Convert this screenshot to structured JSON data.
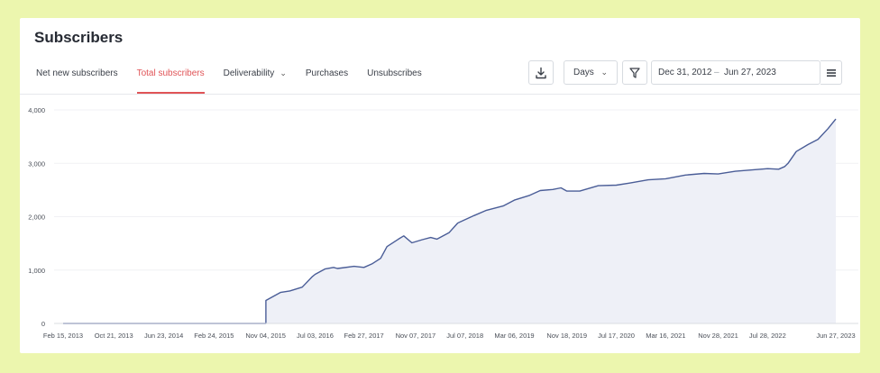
{
  "header": {
    "title": "Subscribers"
  },
  "tabs": [
    {
      "label": "Net new subscribers",
      "active": false
    },
    {
      "label": "Total subscribers",
      "active": true
    },
    {
      "label": "Deliverability",
      "active": false,
      "dropdown": true
    },
    {
      "label": "Purchases",
      "active": false
    },
    {
      "label": "Unsubscribes",
      "active": false
    }
  ],
  "toolbar": {
    "download_icon": "download-icon",
    "interval_value": "Days",
    "filter_icon": "filter-icon",
    "date_start": "Dec 31, 2012",
    "date_separator": "–",
    "date_end": "Jun 27, 2023",
    "menu_icon": "hamburger-menu-icon"
  },
  "colors": {
    "accent": "#e05457",
    "line": "#4a5d97",
    "area": "#eef0f7",
    "background": "#ecf6ae"
  },
  "chart_data": {
    "type": "area",
    "title": "",
    "xlabel": "",
    "ylabel": "",
    "ylim": [
      0,
      4000
    ],
    "yticks": [
      0,
      1000,
      2000,
      3000,
      4000
    ],
    "ytick_labels": [
      "0",
      "1,000",
      "2,000",
      "3,000",
      "4,000"
    ],
    "xlim": [
      "2012-12-31",
      "2023-06-27"
    ],
    "xtick_labels": [
      "Feb 15, 2013",
      "Oct 21, 2013",
      "Jun 23, 2014",
      "Feb 24, 2015",
      "Nov 04, 2015",
      "Jul 03, 2016",
      "Feb 27, 2017",
      "Nov 07, 2017",
      "Jul 07, 2018",
      "Mar 06, 2019",
      "Nov 18, 2019",
      "Jul 17, 2020",
      "Mar 16, 2021",
      "Nov 28, 2021",
      "Jul 28, 2022",
      "Jun 27, 2023"
    ],
    "xticks": [
      "2013-02-15",
      "2013-10-21",
      "2014-06-23",
      "2015-02-24",
      "2015-11-04",
      "2016-07-03",
      "2017-02-27",
      "2017-11-07",
      "2018-07-07",
      "2019-03-06",
      "2019-11-18",
      "2020-07-17",
      "2021-03-16",
      "2021-11-28",
      "2022-07-28",
      "2023-06-27"
    ],
    "grid": true,
    "legend": false,
    "series": [
      {
        "x": [
          "2013-02-15",
          "2015-11-04",
          "2015-11-05",
          "2016-01-15",
          "2016-03-01",
          "2016-05-01",
          "2016-06-20",
          "2016-07-03",
          "2016-08-20",
          "2016-10-01",
          "2016-10-20",
          "2017-01-10",
          "2017-02-27",
          "2017-04-10",
          "2017-05-20",
          "2017-06-20",
          "2017-08-15",
          "2017-09-10",
          "2017-10-20",
          "2017-12-10",
          "2018-01-20",
          "2018-02-20",
          "2018-04-20",
          "2018-06-01",
          "2018-08-20",
          "2018-10-20",
          "2019-01-10",
          "2019-03-06",
          "2019-05-20",
          "2019-07-10",
          "2019-09-10",
          "2019-10-20",
          "2019-11-18",
          "2020-01-20",
          "2020-04-20",
          "2020-07-17",
          "2020-09-20",
          "2020-12-20",
          "2021-03-16",
          "2021-06-20",
          "2021-09-20",
          "2021-11-28",
          "2022-02-20",
          "2022-05-20",
          "2022-07-28",
          "2022-09-20",
          "2022-10-20",
          "2022-11-05",
          "2022-12-15",
          "2023-02-10",
          "2023-04-01",
          "2023-05-20",
          "2023-06-27"
        ],
        "values": [
          0,
          0,
          430,
          580,
          610,
          680,
          880,
          920,
          1020,
          1050,
          1030,
          1070,
          1050,
          1120,
          1220,
          1440,
          1580,
          1640,
          1510,
          1570,
          1610,
          1580,
          1700,
          1880,
          2020,
          2120,
          2200,
          2310,
          2400,
          2490,
          2510,
          2540,
          2480,
          2480,
          2580,
          2590,
          2630,
          2690,
          2710,
          2780,
          2810,
          2800,
          2850,
          2880,
          2900,
          2890,
          2940,
          3000,
          3220,
          3350,
          3450,
          3650,
          3830
        ]
      }
    ]
  }
}
